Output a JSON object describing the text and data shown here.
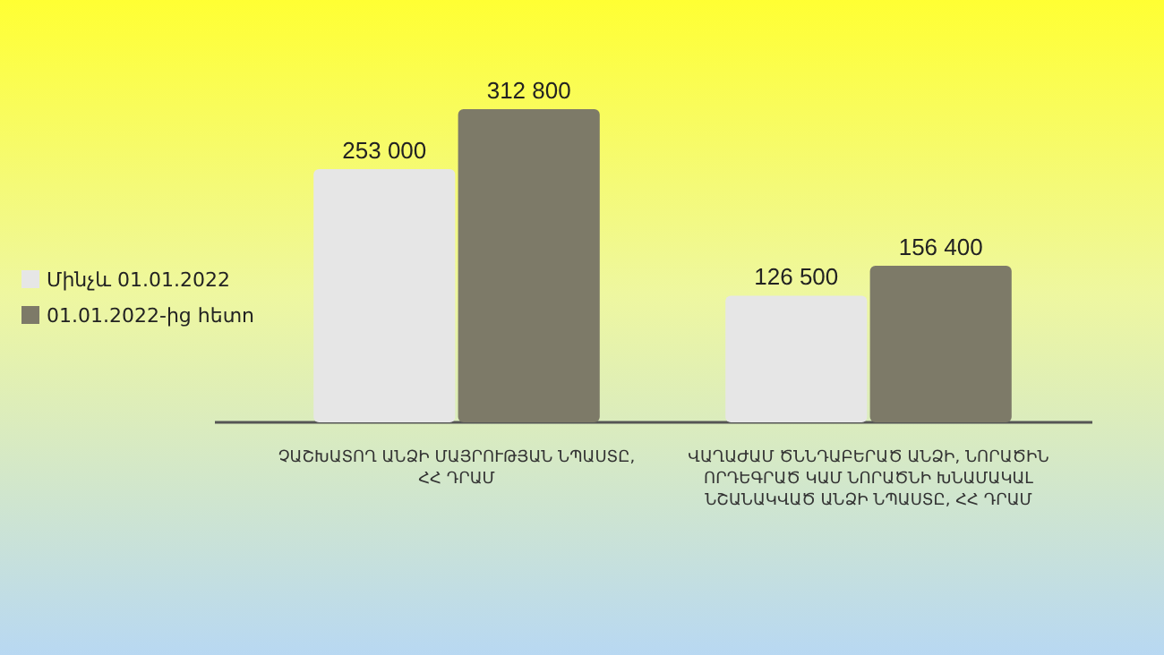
{
  "chart_data": {
    "type": "bar",
    "categories": [
      "ՉԱՇԽԱՏՈՂ ԱՆՁԻ ՄԱՅՐՈՒԹՅԱՆ ՆՊԱՍՏԸ, ՀՀ ԴՐԱՄ",
      "ՎԱՂԱԺԱՄ ԾՆՆԴԱԲԵՐԱԾ ԱՆՁԻ, ՆՈՐԱԾԻՆ ՈՐԴԵԳՐԱԾ ԿԱՄ ՆՈՐԱԾՆԻ ԽՆԱՄԱԿԱԼ ՆՇԱՆԱԿՎԱԾ ԱՆՁԻ ՆՊԱՍՏԸ, ՀՀ ԴՐԱՄ"
    ],
    "series": [
      {
        "name": "Մինչև 01.01.2022",
        "color": "#e6e6e6",
        "values": [
          253000,
          126500
        ],
        "value_labels": [
          "253 000",
          "126 500"
        ]
      },
      {
        "name": "01.01.2022-ից հետո",
        "color": "#7d7a68",
        "values": [
          312800,
          156400
        ],
        "value_labels": [
          "312 800",
          "156 400"
        ]
      }
    ],
    "legend": "left"
  }
}
